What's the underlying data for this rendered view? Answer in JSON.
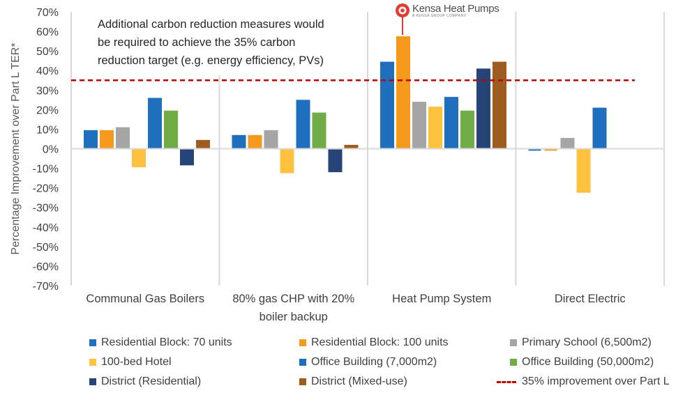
{
  "chart_data": {
    "type": "bar",
    "ylabel": "Percentage Improvement over Part L TER*",
    "ylim": [
      -70,
      70
    ],
    "ytick_step": 10,
    "ytick_labels": [
      "70%",
      "60%",
      "50%",
      "40%",
      "30%",
      "20%",
      "10%",
      "0%",
      "-10%",
      "-20%",
      "-30%",
      "-40%",
      "-50%",
      "-60%",
      "-70%"
    ],
    "grid": false,
    "legend_position": "bottom",
    "categories": [
      [
        "Communal Gas Boilers"
      ],
      [
        "80% gas CHP with 20%",
        "boiler backup"
      ],
      [
        "Heat Pump System"
      ],
      [
        "Direct Electric"
      ]
    ],
    "series": [
      {
        "name": "Residential Block: 70 units",
        "color": "#1f6fbf",
        "values": [
          9.5,
          7,
          44.5,
          -1
        ]
      },
      {
        "name": "Residential Block: 100 units",
        "color": "#f59a1c",
        "values": [
          9.5,
          7,
          57.5,
          -1
        ]
      },
      {
        "name": "Primary School (6,500m2)",
        "color": "#a5a5a5",
        "values": [
          11,
          9.5,
          24,
          5.5
        ]
      },
      {
        "name": "100-bed Hotel",
        "color": "#ffc23e",
        "values": [
          -9.5,
          -12.5,
          21.5,
          -22.5
        ]
      },
      {
        "name": "Office Building (7,000m2)",
        "color": "#1f6fbf",
        "values": [
          26,
          25,
          26.5,
          21
        ]
      },
      {
        "name": "Office Building (50,000m2)",
        "color": "#71ad47",
        "values": [
          19.5,
          18.5,
          19.5,
          null
        ]
      },
      {
        "name": "District (Residential)",
        "color": "#264478",
        "values": [
          -8.5,
          -12,
          41,
          null
        ]
      },
      {
        "name": "District (Mixed-use)",
        "color": "#9e5d1e",
        "values": [
          4.5,
          2,
          44.5,
          null
        ]
      }
    ],
    "reference_line": {
      "name": "35% improvement over Part L",
      "value": 35,
      "color": "#c00000"
    },
    "annotation": [
      "Additional carbon reduction measures would",
      "be required to achieve the 35% carbon",
      "reduction target (e.g. energy efficiency, PVs)"
    ]
  },
  "logo": {
    "brand": "Kensa Heat Pumps",
    "tagline": "A KENSA GROUP COMPANY",
    "color": "#e03c31"
  }
}
